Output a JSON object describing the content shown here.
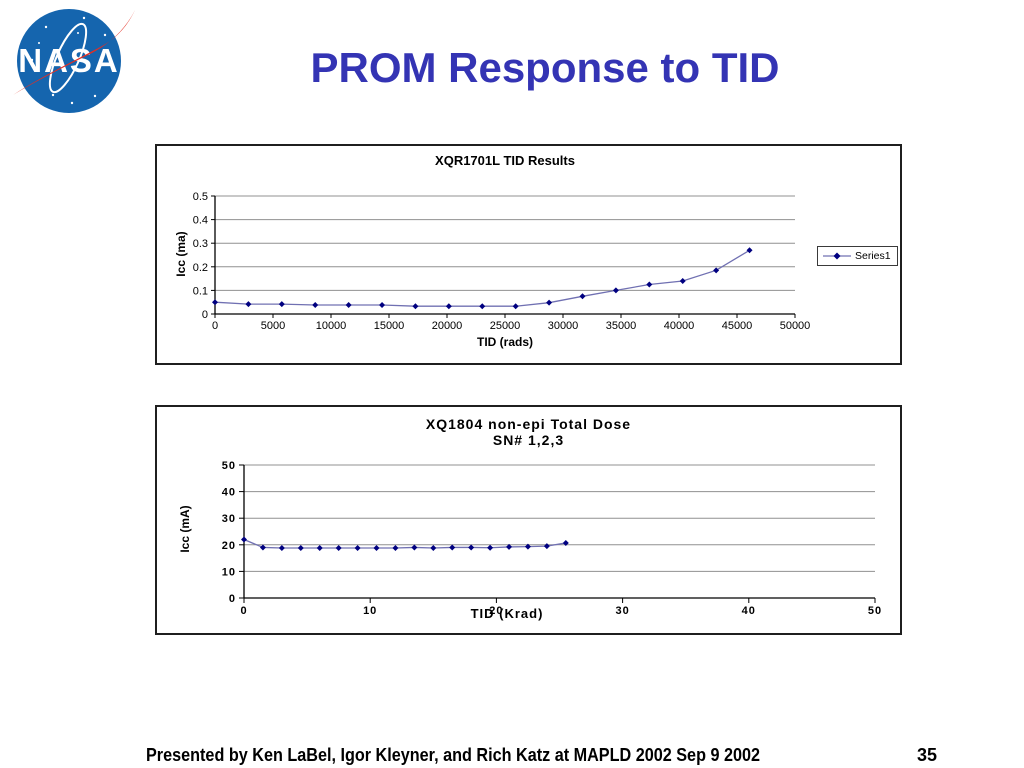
{
  "slide": {
    "title": "PROM Response to TID",
    "title_color": "#3434B4",
    "footer_credits": "Presented by Ken LaBel, Igor Kleyner, and Rich Katz at MAPLD 2002 Sep 9 2002",
    "page_number": "35"
  },
  "logo": {
    "text": "NASA",
    "circle_color": "#1565AE",
    "swoosh_color": "#E32F23"
  },
  "chart_data": [
    {
      "type": "line",
      "title": "XQR1701L TID Results",
      "xlabel": "TID (rads)",
      "ylabel": "Icc (ma)",
      "xlim": [
        0,
        50000
      ],
      "ylim": [
        0,
        0.5
      ],
      "xticks": [
        0,
        5000,
        10000,
        15000,
        20000,
        25000,
        30000,
        35000,
        40000,
        45000,
        50000
      ],
      "xtick_labels": [
        "0",
        "5000",
        "10000",
        "15000",
        "20000",
        "25000",
        "30000",
        "35000",
        "40000",
        "45000",
        "50000"
      ],
      "yticks": [
        0,
        0.1,
        0.2,
        0.3,
        0.4,
        0.5
      ],
      "ytick_labels": [
        "0",
        "0.1",
        "0.2",
        "0.3",
        "0.4",
        "0.5"
      ],
      "grid": true,
      "legend": [
        "Series1"
      ],
      "legend_position": "right",
      "colors": {
        "line": "#7070B2",
        "marker": "#000080",
        "grid": "#909090",
        "axis": "#000000"
      },
      "series": [
        {
          "name": "Series1",
          "x": [
            0,
            2880,
            5760,
            8640,
            11520,
            14400,
            17280,
            20160,
            23040,
            25920,
            28800,
            31680,
            34560,
            37440,
            40320,
            43200,
            46080
          ],
          "y": [
            0.05,
            0.042,
            0.042,
            0.038,
            0.038,
            0.038,
            0.033,
            0.033,
            0.033,
            0.033,
            0.048,
            0.075,
            0.1,
            0.125,
            0.14,
            0.185,
            0.27
          ]
        }
      ]
    },
    {
      "type": "line",
      "title": "XQ1804 non-epi Total Dose",
      "subtitle": "SN# 1,2,3",
      "xlabel": "TID (Krad)",
      "ylabel": "Icc (mA)",
      "xlim": [
        0,
        50
      ],
      "ylim": [
        0,
        50
      ],
      "xticks": [
        0,
        10,
        20,
        30,
        40,
        50
      ],
      "xtick_labels": [
        "0",
        "10",
        "20",
        "30",
        "40",
        "50"
      ],
      "yticks": [
        0,
        10,
        20,
        30,
        40,
        50
      ],
      "ytick_labels": [
        "0",
        "10",
        "20",
        "30",
        "40",
        "50"
      ],
      "grid": true,
      "legend": [],
      "colors": {
        "line": "#7070B2",
        "marker": "#000080",
        "grid": "#909090",
        "axis": "#000000"
      },
      "series": [
        {
          "name": "SN 1,2,3",
          "x": [
            0,
            1.5,
            3,
            4.5,
            6,
            7.5,
            9,
            10.5,
            12,
            13.5,
            15,
            16.5,
            18,
            19.5,
            21,
            22.5,
            24,
            25.5
          ],
          "y": [
            22,
            19,
            18.8,
            18.8,
            18.8,
            18.8,
            18.8,
            18.8,
            18.8,
            19,
            18.8,
            19,
            19,
            18.9,
            19.2,
            19.3,
            19.5,
            20.7
          ]
        }
      ]
    }
  ]
}
